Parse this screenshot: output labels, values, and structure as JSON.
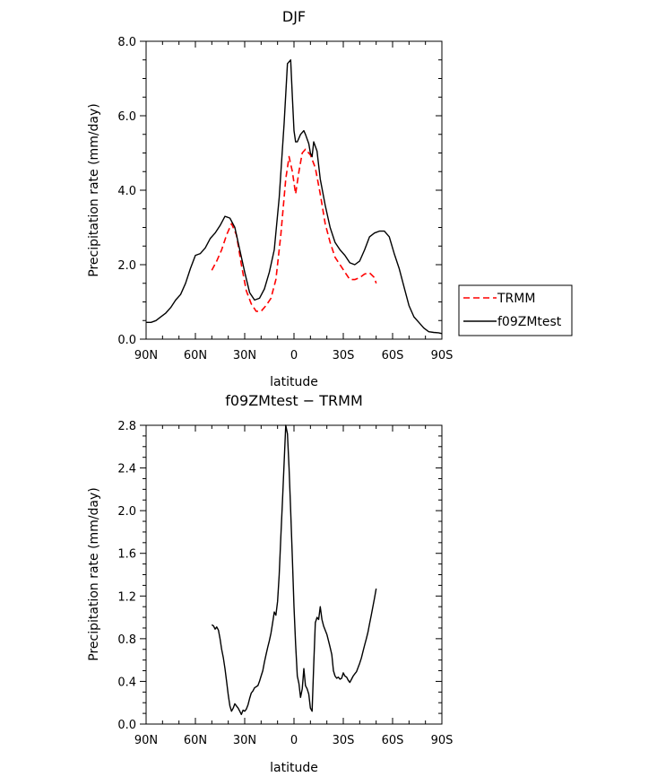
{
  "chart_data": [
    {
      "type": "line",
      "title": "DJF",
      "xlabel": "latitude",
      "ylabel": "Precipitation rate (mm/day)",
      "xlim": [
        -90,
        90
      ],
      "ylim": [
        0,
        8
      ],
      "x_ticks": [
        -90,
        -60,
        -30,
        0,
        30,
        60,
        90
      ],
      "x_tick_labels": [
        "90N",
        "60N",
        "30N",
        "0",
        "30S",
        "60S",
        "90S"
      ],
      "y_ticks": [
        0,
        2,
        4,
        6,
        8
      ],
      "y_tick_labels": [
        "0.0",
        "2.0",
        "4.0",
        "6.0",
        "8.0"
      ],
      "legend": [
        {
          "label": "TRMM",
          "color": "#ff0000",
          "style": "dashed"
        },
        {
          "label": "f09ZMtest",
          "color": "#000000",
          "style": "solid"
        }
      ],
      "series": [
        {
          "name": "TRMM",
          "color": "#ff0000",
          "style": "dashed",
          "x": [
            -50,
            -47,
            -44,
            -41,
            -38,
            -35,
            -32,
            -29,
            -26,
            -23,
            -20,
            -17,
            -14,
            -11,
            -8,
            -5,
            -3,
            -1,
            1,
            3,
            5,
            7,
            10,
            13,
            16,
            19,
            22,
            25,
            28,
            31,
            34,
            37,
            40,
            43,
            46,
            49,
            50
          ],
          "y": [
            1.85,
            2.1,
            2.4,
            2.8,
            3.1,
            2.8,
            2.0,
            1.3,
            0.95,
            0.75,
            0.75,
            0.9,
            1.1,
            1.6,
            2.8,
            4.3,
            4.9,
            4.5,
            3.9,
            4.5,
            5.0,
            5.1,
            4.95,
            4.6,
            3.9,
            3.1,
            2.6,
            2.2,
            2.0,
            1.8,
            1.6,
            1.6,
            1.65,
            1.75,
            1.78,
            1.65,
            1.5
          ]
        },
        {
          "name": "f09ZMtest",
          "color": "#000000",
          "style": "solid",
          "x": [
            -90,
            -87,
            -84,
            -81,
            -78,
            -75,
            -72,
            -69,
            -66,
            -63,
            -60,
            -57,
            -54,
            -51,
            -48,
            -45,
            -42,
            -39,
            -36,
            -33,
            -30,
            -27,
            -24,
            -21,
            -18,
            -15,
            -12,
            -9,
            -6,
            -4,
            -2,
            -1,
            0,
            1,
            2,
            4,
            6,
            7,
            9,
            10,
            11,
            12,
            14,
            16,
            19,
            22,
            25,
            28,
            31,
            34,
            37,
            40,
            43,
            46,
            49,
            52,
            55,
            58,
            61,
            64,
            67,
            70,
            73,
            76,
            79,
            82,
            85,
            88,
            90
          ],
          "y": [
            0.45,
            0.45,
            0.5,
            0.6,
            0.7,
            0.85,
            1.05,
            1.2,
            1.5,
            1.9,
            2.25,
            2.3,
            2.45,
            2.7,
            2.85,
            3.05,
            3.3,
            3.25,
            3.0,
            2.4,
            1.8,
            1.25,
            1.05,
            1.1,
            1.35,
            1.8,
            2.4,
            3.8,
            5.8,
            7.4,
            7.5,
            6.5,
            5.6,
            5.3,
            5.3,
            5.5,
            5.6,
            5.5,
            5.25,
            5.0,
            4.9,
            5.3,
            5.05,
            4.3,
            3.6,
            3.0,
            2.6,
            2.4,
            2.25,
            2.05,
            2.0,
            2.1,
            2.4,
            2.75,
            2.85,
            2.9,
            2.9,
            2.75,
            2.3,
            1.9,
            1.4,
            0.9,
            0.6,
            0.45,
            0.3,
            0.2,
            0.18,
            0.17,
            0.15
          ]
        }
      ]
    },
    {
      "type": "line",
      "title": "f09ZMtest − TRMM",
      "xlabel": "latitude",
      "ylabel": "Precipitation rate (mm/day)",
      "xlim": [
        -90,
        90
      ],
      "ylim": [
        0,
        2.8
      ],
      "x_ticks": [
        -90,
        -60,
        -30,
        0,
        30,
        60,
        90
      ],
      "x_tick_labels": [
        "90N",
        "60N",
        "30N",
        "0",
        "30S",
        "60S",
        "90S"
      ],
      "y_ticks": [
        0,
        0.4,
        0.8,
        1.2,
        1.6,
        2.0,
        2.4,
        2.8
      ],
      "y_tick_labels": [
        "0.0",
        "0.4",
        "0.8",
        "1.2",
        "1.6",
        "2.0",
        "2.4",
        "2.8"
      ],
      "series": [
        {
          "name": "f09ZMtest - TRMM",
          "color": "#000000",
          "style": "solid",
          "x": [
            -50,
            -49,
            -48,
            -47,
            -46,
            -45,
            -44,
            -43,
            -42,
            -41,
            -40,
            -39,
            -38,
            -37,
            -36,
            -35,
            -34,
            -33,
            -32,
            -31,
            -30,
            -29,
            -28,
            -27,
            -26,
            -25,
            -24,
            -23,
            -22,
            -21,
            -20,
            -19,
            -18,
            -17,
            -16,
            -15,
            -14,
            -13,
            -12,
            -11,
            -10,
            -9,
            -8,
            -7,
            -6,
            -5,
            -4,
            -3,
            -2,
            -1,
            0,
            1,
            2,
            3,
            4,
            5,
            6,
            7,
            8,
            9,
            10,
            11,
            12,
            13,
            14,
            15,
            16,
            17,
            18,
            19,
            20,
            21,
            22,
            23,
            24,
            25,
            26,
            27,
            28,
            29,
            30,
            31,
            32,
            33,
            34,
            35,
            36,
            37,
            38,
            39,
            40,
            41,
            42,
            43,
            44,
            45,
            46,
            47,
            48,
            49,
            50
          ],
          "y": [
            0.93,
            0.92,
            0.89,
            0.91,
            0.88,
            0.8,
            0.7,
            0.62,
            0.52,
            0.4,
            0.27,
            0.17,
            0.12,
            0.15,
            0.19,
            0.17,
            0.15,
            0.12,
            0.09,
            0.13,
            0.12,
            0.14,
            0.18,
            0.24,
            0.29,
            0.31,
            0.34,
            0.35,
            0.36,
            0.4,
            0.45,
            0.5,
            0.58,
            0.65,
            0.72,
            0.78,
            0.85,
            0.95,
            1.05,
            1.02,
            1.15,
            1.4,
            1.75,
            2.1,
            2.45,
            2.8,
            2.72,
            2.4,
            2.0,
            1.55,
            1.1,
            0.75,
            0.45,
            0.38,
            0.25,
            0.33,
            0.52,
            0.36,
            0.33,
            0.28,
            0.15,
            0.12,
            0.55,
            0.95,
            1.0,
            0.98,
            1.1,
            0.98,
            0.92,
            0.88,
            0.84,
            0.78,
            0.72,
            0.65,
            0.5,
            0.45,
            0.43,
            0.44,
            0.42,
            0.43,
            0.48,
            0.45,
            0.44,
            0.41,
            0.39,
            0.42,
            0.45,
            0.47,
            0.49,
            0.53,
            0.57,
            0.62,
            0.68,
            0.74,
            0.8,
            0.86,
            0.94,
            1.02,
            1.1,
            1.18,
            1.27
          ]
        }
      ]
    }
  ]
}
